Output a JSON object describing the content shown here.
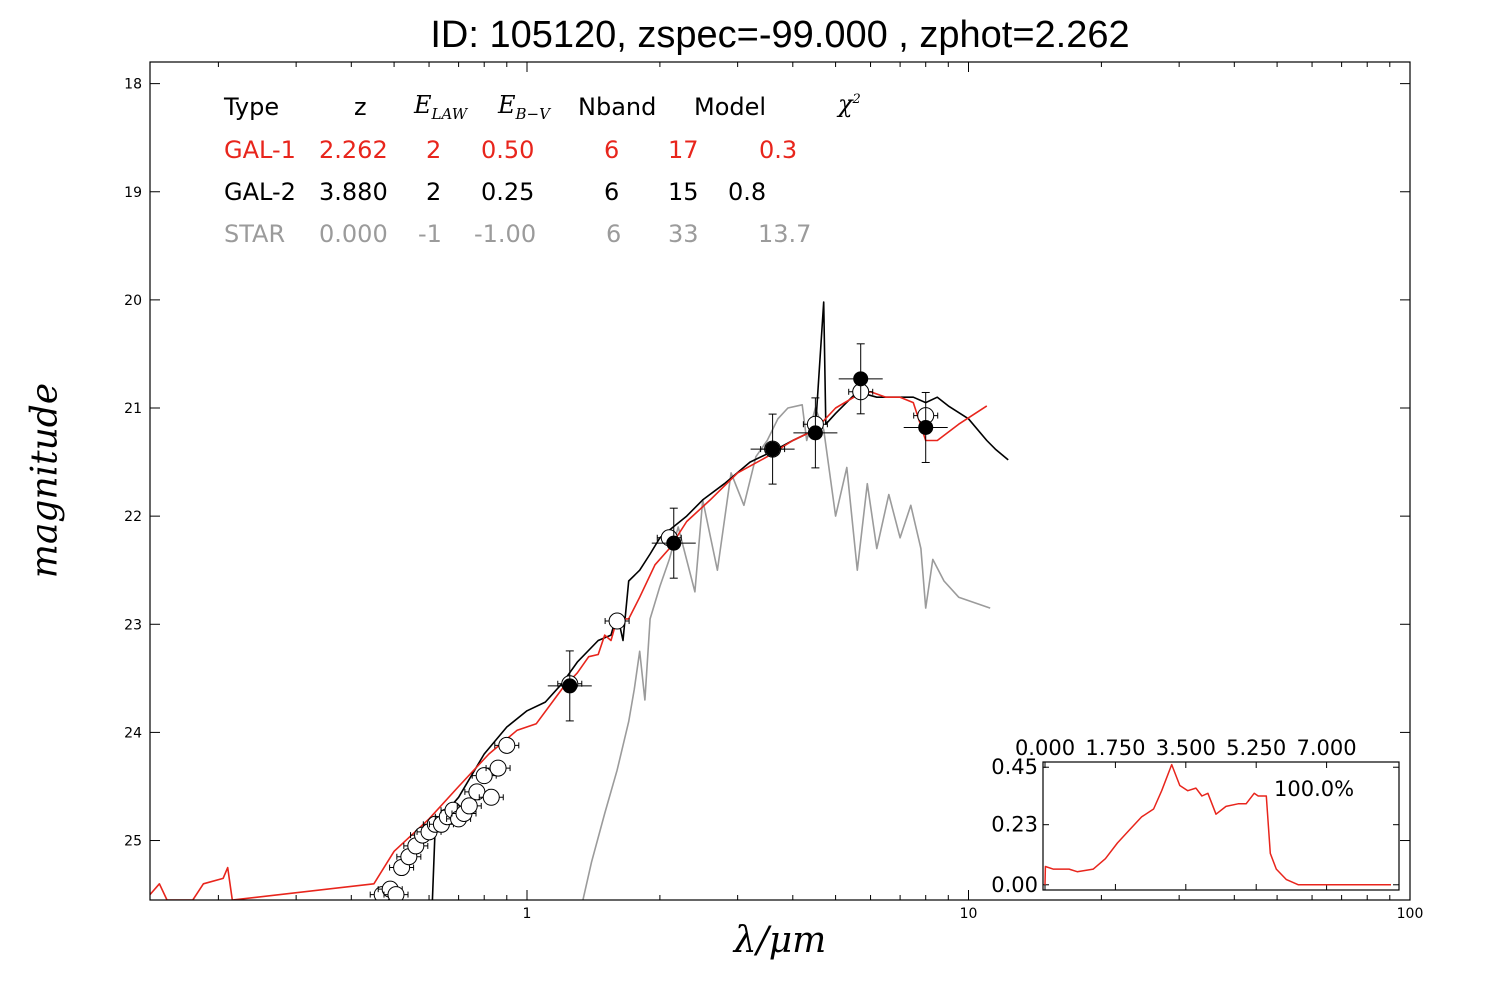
{
  "title": "ID:  105120, zspec=-99.000 , zphot=2.262",
  "table": {
    "headers": {
      "type": "Type",
      "z": "z",
      "elaw_main": "E",
      "elaw_sub": "LAW",
      "ebv_main": "E",
      "ebv_sub": "B−V",
      "nband": "Nband",
      "model": "Model",
      "chi_main": "χ",
      "chi_sup": "2"
    },
    "rows": [
      {
        "type": "GAL-1",
        "z": "2.262",
        "elaw": "2",
        "ebv": "0.50",
        "nband": "6",
        "model": "17",
        "chi2": "0.3"
      },
      {
        "type": "GAL-2",
        "z": "3.880",
        "elaw": "2",
        "ebv": "0.25",
        "nband": "6",
        "model": "15",
        "chi2": "0.8"
      },
      {
        "type": "STAR",
        "z": "0.000",
        "elaw": "-1",
        "ebv": "-1.00",
        "nband": "6",
        "model": "33",
        "chi2": "13.7"
      }
    ]
  },
  "colors": {
    "gal1": "#e8251c",
    "gal2": "#000000",
    "star": "#9b9b9b"
  },
  "chart_data": [
    {
      "type": "line",
      "xlabel": "λ/μm",
      "ylabel": "magnitude",
      "x_scale": "log",
      "xlim": [
        0.14,
        100
      ],
      "ylim": [
        25.55,
        17.8
      ],
      "y_inverted": true,
      "x_ticks": [
        1,
        10,
        100
      ],
      "x_tick_labels": [
        "1",
        "10",
        "100"
      ],
      "y_ticks": [
        18,
        19,
        20,
        21,
        22,
        23,
        24,
        25
      ],
      "y_tick_labels": [
        "18",
        "19",
        "20",
        "21",
        "22",
        "23",
        "24",
        "25"
      ],
      "series": [
        {
          "name": "GAL-1",
          "color": "#e8251c",
          "points": [
            [
              0.14,
              25.5
            ],
            [
              0.147,
              25.4
            ],
            [
              0.153,
              25.55
            ],
            [
              0.175,
              25.55
            ],
            [
              0.185,
              25.4
            ],
            [
              0.205,
              25.35
            ],
            [
              0.21,
              25.25
            ],
            [
              0.215,
              25.55
            ],
            [
              0.45,
              25.4
            ],
            [
              0.5,
              25.1
            ],
            [
              0.6,
              24.8
            ],
            [
              0.7,
              24.5
            ],
            [
              0.82,
              24.2
            ],
            [
              0.95,
              23.98
            ],
            [
              1.05,
              23.92
            ],
            [
              1.2,
              23.6
            ],
            [
              1.3,
              23.45
            ],
            [
              1.38,
              23.3
            ],
            [
              1.45,
              23.28
            ],
            [
              1.5,
              23.1
            ],
            [
              1.55,
              23.15
            ],
            [
              1.6,
              22.95
            ],
            [
              1.7,
              22.95
            ],
            [
              1.8,
              22.75
            ],
            [
              1.95,
              22.45
            ],
            [
              2.1,
              22.3
            ],
            [
              2.3,
              22.05
            ],
            [
              2.6,
              21.85
            ],
            [
              3.0,
              21.6
            ],
            [
              3.5,
              21.45
            ],
            [
              4.0,
              21.3
            ],
            [
              4.5,
              21.2
            ],
            [
              5.0,
              21.0
            ],
            [
              5.5,
              20.9
            ],
            [
              6.0,
              20.85
            ],
            [
              6.5,
              20.9
            ],
            [
              7.0,
              20.9
            ],
            [
              7.5,
              20.95
            ],
            [
              8.0,
              21.3
            ],
            [
              8.5,
              21.3
            ],
            [
              9.5,
              21.15
            ],
            [
              11.0,
              20.98
            ]
          ]
        },
        {
          "name": "GAL-2",
          "color": "#000000",
          "points": [
            [
              0.61,
              25.6
            ],
            [
              0.62,
              24.85
            ],
            [
              0.7,
              24.6
            ],
            [
              0.8,
              24.2
            ],
            [
              0.9,
              23.95
            ],
            [
              1.0,
              23.8
            ],
            [
              1.1,
              23.72
            ],
            [
              1.2,
              23.55
            ],
            [
              1.3,
              23.35
            ],
            [
              1.45,
              23.15
            ],
            [
              1.55,
              23.1
            ],
            [
              1.6,
              22.9
            ],
            [
              1.65,
              23.15
            ],
            [
              1.7,
              22.6
            ],
            [
              1.8,
              22.5
            ],
            [
              1.9,
              22.35
            ],
            [
              2.0,
              22.2
            ],
            [
              2.3,
              22.0
            ],
            [
              2.5,
              21.85
            ],
            [
              2.8,
              21.7
            ],
            [
              3.2,
              21.5
            ],
            [
              3.6,
              21.4
            ],
            [
              4.0,
              21.3
            ],
            [
              4.5,
              21.2
            ],
            [
              4.7,
              20.02
            ],
            [
              4.75,
              21.15
            ],
            [
              5.0,
              21.05
            ],
            [
              5.6,
              20.85
            ],
            [
              6.2,
              20.9
            ],
            [
              7.0,
              20.9
            ],
            [
              7.5,
              20.9
            ],
            [
              8.0,
              20.95
            ],
            [
              8.5,
              20.9
            ],
            [
              9.0,
              20.98
            ],
            [
              10.0,
              21.1
            ],
            [
              11.0,
              21.3
            ],
            [
              11.5,
              21.38
            ],
            [
              12.3,
              21.48
            ]
          ]
        },
        {
          "name": "STAR",
          "color": "#9b9b9b",
          "points": [
            [
              1.33,
              25.6
            ],
            [
              1.4,
              25.2
            ],
            [
              1.5,
              24.75
            ],
            [
              1.6,
              24.35
            ],
            [
              1.7,
              23.9
            ],
            [
              1.75,
              23.6
            ],
            [
              1.8,
              23.25
            ],
            [
              1.85,
              23.7
            ],
            [
              1.9,
              22.95
            ],
            [
              2.0,
              22.65
            ],
            [
              2.1,
              22.4
            ],
            [
              2.2,
              22.1
            ],
            [
              2.4,
              22.7
            ],
            [
              2.5,
              21.85
            ],
            [
              2.7,
              22.5
            ],
            [
              2.9,
              21.6
            ],
            [
              3.1,
              21.9
            ],
            [
              3.3,
              21.45
            ],
            [
              3.5,
              21.3
            ],
            [
              3.7,
              21.1
            ],
            [
              3.9,
              21.0
            ],
            [
              4.2,
              20.97
            ],
            [
              4.3,
              21.3
            ],
            [
              4.5,
              21.0
            ],
            [
              4.7,
              21.2
            ],
            [
              5.0,
              22.0
            ],
            [
              5.3,
              21.55
            ],
            [
              5.6,
              22.5
            ],
            [
              5.9,
              21.7
            ],
            [
              6.2,
              22.3
            ],
            [
              6.6,
              21.8
            ],
            [
              7.0,
              22.2
            ],
            [
              7.4,
              21.9
            ],
            [
              7.8,
              22.3
            ],
            [
              8.0,
              22.85
            ],
            [
              8.3,
              22.4
            ],
            [
              8.8,
              22.6
            ],
            [
              9.5,
              22.75
            ],
            [
              11.2,
              22.85
            ]
          ]
        }
      ],
      "photometry": {
        "open_circles": [
          [
            0.47,
            25.5
          ],
          [
            0.49,
            25.45
          ],
          [
            0.505,
            25.5
          ],
          [
            0.52,
            25.25
          ],
          [
            0.54,
            25.15
          ],
          [
            0.56,
            25.05
          ],
          [
            0.58,
            24.95
          ],
          [
            0.6,
            24.92
          ],
          [
            0.62,
            24.85
          ],
          [
            0.64,
            24.85
          ],
          [
            0.66,
            24.78
          ],
          [
            0.68,
            24.72
          ],
          [
            0.7,
            24.8
          ],
          [
            0.72,
            24.75
          ],
          [
            0.74,
            24.68
          ],
          [
            0.77,
            24.55
          ],
          [
            0.8,
            24.4
          ],
          [
            0.83,
            24.6
          ],
          [
            0.86,
            24.33
          ],
          [
            0.9,
            24.12
          ],
          [
            1.25,
            23.55
          ],
          [
            1.6,
            22.97
          ],
          [
            2.1,
            22.2
          ],
          [
            3.6,
            21.38
          ],
          [
            4.5,
            21.15
          ],
          [
            5.7,
            20.85
          ],
          [
            8.0,
            21.07
          ]
        ],
        "filled_circles": [
          [
            1.25,
            23.57
          ],
          [
            2.15,
            22.25
          ],
          [
            3.6,
            21.38
          ],
          [
            4.5,
            21.23
          ],
          [
            5.7,
            20.73
          ],
          [
            8.0,
            21.18
          ]
        ]
      }
    },
    {
      "type": "line",
      "xlim": [
        -0.05,
        8.8
      ],
      "ylim": [
        -0.02,
        0.47
      ],
      "x_ticks": [
        0,
        1.75,
        3.5,
        5.25,
        7.0
      ],
      "x_tick_labels": [
        "0.000",
        "1.750",
        "3.500",
        "5.250",
        "7.000"
      ],
      "y_ticks": [
        0,
        0.23,
        0.45
      ],
      "y_tick_labels": [
        "0.00",
        "0.23",
        "0.45"
      ],
      "annotation": "100.0%",
      "series": [
        {
          "color": "#e8251c",
          "points": [
            [
              0.0,
              0.0
            ],
            [
              0.01,
              0.07
            ],
            [
              0.2,
              0.06
            ],
            [
              0.6,
              0.06
            ],
            [
              0.8,
              0.05
            ],
            [
              1.2,
              0.06
            ],
            [
              1.5,
              0.1
            ],
            [
              1.8,
              0.16
            ],
            [
              2.1,
              0.21
            ],
            [
              2.4,
              0.26
            ],
            [
              2.7,
              0.29
            ],
            [
              2.9,
              0.36
            ],
            [
              3.15,
              0.46
            ],
            [
              3.35,
              0.38
            ],
            [
              3.55,
              0.36
            ],
            [
              3.75,
              0.37
            ],
            [
              3.9,
              0.34
            ],
            [
              4.05,
              0.35
            ],
            [
              4.25,
              0.27
            ],
            [
              4.5,
              0.3
            ],
            [
              4.8,
              0.31
            ],
            [
              5.0,
              0.31
            ],
            [
              5.2,
              0.35
            ],
            [
              5.3,
              0.34
            ],
            [
              5.5,
              0.34
            ],
            [
              5.6,
              0.12
            ],
            [
              5.75,
              0.06
            ],
            [
              6.0,
              0.02
            ],
            [
              6.3,
              0.0
            ],
            [
              8.6,
              0.0
            ]
          ]
        }
      ]
    }
  ]
}
